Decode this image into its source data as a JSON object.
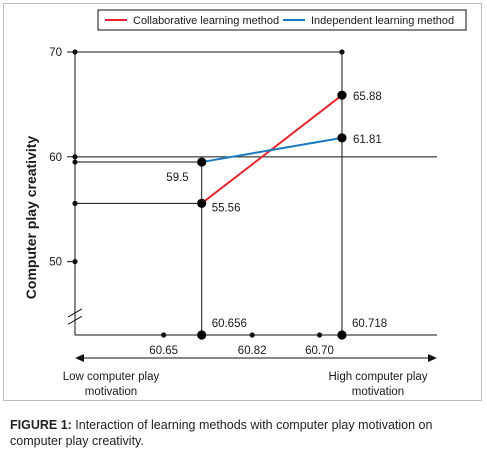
{
  "chart_data": {
    "type": "line",
    "ylabel": "Computer play creativity",
    "yticks": [
      50,
      60,
      70
    ],
    "ylim": [
      43,
      70
    ],
    "xlim": [
      60.6,
      60.76
    ],
    "xticks_top": [
      "60.656",
      "60.718"
    ],
    "xticks_bottom": [
      "60.65",
      "60.82",
      "60.70"
    ],
    "x_categories": [
      "Low computer play motivation",
      "High computer play motivation"
    ],
    "x_low_label": "Low computer play\nmotivation",
    "x_high_label": "High computer play\nmotivation",
    "reference_line_y": 60,
    "series": [
      {
        "name": "Collaborative learning method",
        "color": "#e8262d",
        "points": [
          {
            "x": 60.656,
            "y": 55.56,
            "label": "55.56"
          },
          {
            "x": 60.718,
            "y": 65.88,
            "label": "65.88"
          }
        ]
      },
      {
        "name": "Independent learning method",
        "color": "#1a7abf",
        "points": [
          {
            "x": 60.656,
            "y": 59.5,
            "label": "59.5"
          },
          {
            "x": 60.718,
            "y": 61.81,
            "label": "61.81"
          }
        ]
      }
    ],
    "legend_position": "top"
  },
  "caption": {
    "prefix": "FIGURE 1:",
    "text": " Interaction of learning methods with computer play motivation on computer play creativity."
  }
}
